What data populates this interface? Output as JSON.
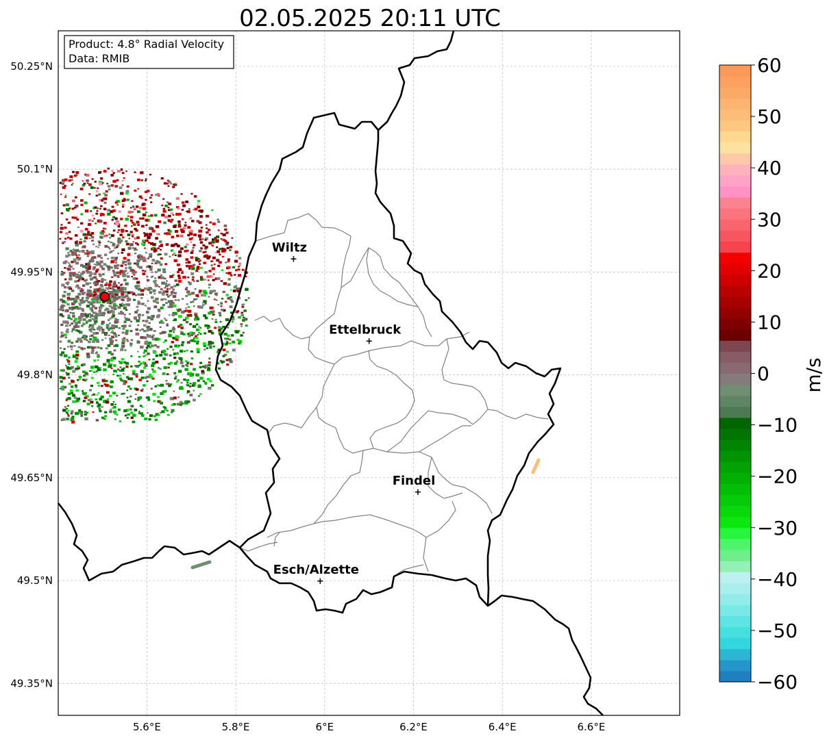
{
  "title": "02.05.2025 20:11 UTC",
  "info_box": {
    "product": "Product: 4.8° Radial Velocity",
    "data_source": "Data: RMIB"
  },
  "axes": {
    "x_ticks": [
      {
        "lon": 5.6,
        "label": "5.6°E"
      },
      {
        "lon": 5.8,
        "label": "5.8°E"
      },
      {
        "lon": 6.0,
        "label": "6°E"
      },
      {
        "lon": 6.2,
        "label": "6.2°E"
      },
      {
        "lon": 6.4,
        "label": "6.4°E"
      },
      {
        "lon": 6.6,
        "label": "6.6°E"
      }
    ],
    "y_ticks": [
      {
        "lat": 50.25,
        "label": "50.25°N"
      },
      {
        "lat": 50.1,
        "label": "50.1°N"
      },
      {
        "lat": 49.95,
        "label": "49.95°N"
      },
      {
        "lat": 49.8,
        "label": "49.8°N"
      },
      {
        "lat": 49.65,
        "label": "49.65°N"
      },
      {
        "lat": 49.5,
        "label": "49.5°N"
      },
      {
        "lat": 49.35,
        "label": "49.35°N"
      }
    ],
    "lon_range": [
      5.4,
      6.8
    ],
    "lat_range": [
      49.3,
      50.3
    ],
    "grid": true
  },
  "cities": [
    {
      "name": "Wiltz",
      "lon": 5.93,
      "lat": 49.97
    },
    {
      "name": "Ettelbruck",
      "lon": 6.1,
      "lat": 49.85
    },
    {
      "name": "Findel",
      "lon": 6.21,
      "lat": 49.63
    },
    {
      "name": "Esch/Alzette",
      "lon": 5.99,
      "lat": 49.5
    }
  ],
  "radar_site": {
    "lon": 5.505,
    "lat": 49.914,
    "color": "#e8000b"
  },
  "colorbar": {
    "label": "m/s",
    "vmin": -60,
    "vmax": 60,
    "ticks": [
      {
        "value": 60,
        "label": "60"
      },
      {
        "value": 50,
        "label": "50"
      },
      {
        "value": 40,
        "label": "40"
      },
      {
        "value": 30,
        "label": "30"
      },
      {
        "value": 20,
        "label": "20"
      },
      {
        "value": 10,
        "label": "10"
      },
      {
        "value": 0,
        "label": "0"
      },
      {
        "value": -10,
        "label": "−10"
      },
      {
        "value": -20,
        "label": "−20"
      },
      {
        "value": -30,
        "label": "−30"
      },
      {
        "value": -40,
        "label": "−40"
      },
      {
        "value": -50,
        "label": "−50"
      },
      {
        "value": -60,
        "label": "−60"
      }
    ],
    "colors": [
      "#1f7fc0",
      "#2596c9",
      "#2bb6d4",
      "#32d6de",
      "#45dfe0",
      "#5ee5e3",
      "#78e9e6",
      "#92ecea",
      "#a8efee",
      "#bdf1ef",
      "#94f0b4",
      "#6fee8c",
      "#4ef56a",
      "#28f53e",
      "#0ce80f",
      "#08d90b",
      "#05cc08",
      "#03be06",
      "#02b004",
      "#02a203",
      "#019302",
      "#018402",
      "#017501",
      "#006600",
      "#4d7a52",
      "#5f8564",
      "#718e73",
      "#857a7c",
      "#8a6a72",
      "#875c66",
      "#7d4751",
      "#6b0000",
      "#7f0000",
      "#930000",
      "#a70000",
      "#bb0000",
      "#cf0000",
      "#e30000",
      "#f50000",
      "#f5444e",
      "#f7555f",
      "#f9646e",
      "#fb737d",
      "#fc8290",
      "#fd92c5",
      "#fea2c8",
      "#fdb2bd",
      "#fdc9a8",
      "#fde19e",
      "#fdd98f",
      "#fcc77f",
      "#fcbd78",
      "#fcb470",
      "#fca968",
      "#fca060",
      "#fc9858"
    ]
  }
}
